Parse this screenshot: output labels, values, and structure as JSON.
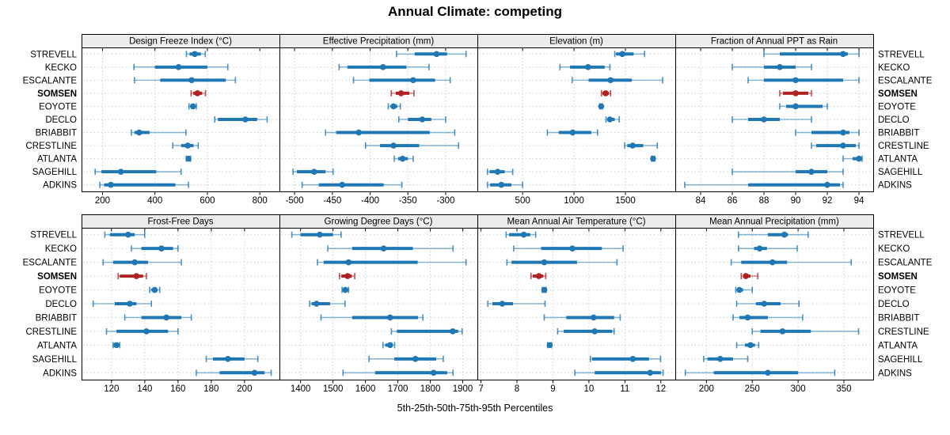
{
  "title": "Annual Climate: competing",
  "caption": "5th-25th-50th-75th-95th Percentiles",
  "sites": [
    "STREVELL",
    "KECKO",
    "ESCALANTE",
    "SOMSEN",
    "EOYOTE",
    "DECLO",
    "BRIABBIT",
    "CRESTLINE",
    "ATLANTA",
    "SAGEHILL",
    "ADKINS"
  ],
  "highlight_site": "SOMSEN",
  "colors": {
    "series": "#1f77b4",
    "highlight": "#b22222",
    "strip_bg": "#ececec",
    "grid": "#d0d0d0",
    "border": "#000000",
    "text": "#000000"
  },
  "chart_data": {
    "type": "dot-percentile-trellis",
    "layout": {
      "rows": 2,
      "cols": 4,
      "grid": "dotted",
      "legend": "none"
    },
    "percentile_labels": [
      "5th",
      "25th",
      "50th",
      "75th",
      "95th"
    ],
    "panels": [
      {
        "title": "Design Freeze Index (°C)",
        "xlim": [
          120,
          875
        ],
        "xticks": [
          200,
          400,
          600,
          800
        ],
        "values": [
          [
            520,
            532,
            552,
            575,
            592
          ],
          [
            320,
            400,
            490,
            600,
            678
          ],
          [
            322,
            420,
            540,
            670,
            707
          ],
          [
            538,
            546,
            562,
            580,
            593
          ],
          [
            530,
            536,
            545,
            551,
            558
          ],
          [
            628,
            640,
            745,
            790,
            828
          ],
          [
            310,
            322,
            340,
            380,
            518
          ],
          [
            468,
            500,
            525,
            547,
            565
          ],
          [
            520,
            524,
            528,
            532,
            536
          ],
          [
            172,
            196,
            270,
            405,
            500
          ],
          [
            190,
            206,
            232,
            478,
            528
          ]
        ]
      },
      {
        "title": "Effective Precipitation (mm)",
        "xlim": [
          -520,
          -258
        ],
        "xticks": [
          -500,
          -450,
          -400,
          -350,
          -300
        ],
        "values": [
          [
            -365,
            -341,
            -312,
            -298,
            -273
          ],
          [
            -441,
            -430,
            -383,
            -352,
            -322
          ],
          [
            -422,
            -401,
            -343,
            -314,
            -294
          ],
          [
            -372,
            -366,
            -359,
            -348,
            -342
          ],
          [
            -376,
            -373,
            -369,
            -364,
            -360
          ],
          [
            -362,
            -350,
            -331,
            -319,
            -300
          ],
          [
            -459,
            -445,
            -415,
            -321,
            -288
          ],
          [
            -406,
            -387,
            -369,
            -335,
            -283
          ],
          [
            -368,
            -363,
            -357,
            -350,
            -343
          ],
          [
            -502,
            -497,
            -474,
            -459,
            -449
          ],
          [
            -490,
            -468,
            -437,
            -382,
            -358
          ]
        ]
      },
      {
        "title": "Elevation (m)",
        "xlim": [
          60,
          1985
        ],
        "xticks": [
          500,
          1000,
          1500
        ],
        "values": [
          [
            1396,
            1408,
            1470,
            1580,
            1686
          ],
          [
            863,
            961,
            1137,
            1298,
            1349
          ],
          [
            982,
            1142,
            1355,
            1562,
            1862
          ],
          [
            1267,
            1277,
            1308,
            1339,
            1355
          ],
          [
            1250,
            1258,
            1264,
            1270,
            1277
          ],
          [
            1311,
            1323,
            1349,
            1396,
            1440
          ],
          [
            741,
            852,
            987,
            1168,
            1228
          ],
          [
            1492,
            1518,
            1570,
            1673,
            1810
          ],
          [
            1755,
            1762,
            1769,
            1776,
            1785
          ],
          [
            158,
            179,
            257,
            326,
            404
          ],
          [
            158,
            184,
            293,
            391,
            500
          ]
        ]
      },
      {
        "title": "Fraction of Annual PPT as Rain",
        "xlim": [
          82.4,
          94.9
        ],
        "xticks": [
          84,
          86,
          88,
          90,
          92,
          94
        ],
        "values": [
          [
            88,
            89,
            93,
            93.3,
            94
          ],
          [
            86,
            88,
            89,
            90,
            91
          ],
          [
            87,
            88,
            90,
            93,
            94
          ],
          [
            89,
            89.2,
            90,
            90.8,
            91
          ],
          [
            89,
            89.4,
            90,
            91.7,
            92
          ],
          [
            86,
            87,
            88,
            89,
            91
          ],
          [
            90,
            91,
            93,
            93.4,
            94
          ],
          [
            91,
            91.3,
            93,
            93.8,
            94
          ],
          [
            93,
            93.6,
            94,
            94.1,
            94.2
          ],
          [
            86,
            90,
            91,
            92,
            93
          ],
          [
            83,
            87,
            92,
            92.8,
            93
          ]
        ]
      },
      {
        "title": "Frost-Free Days",
        "xlim": [
          102,
          221
        ],
        "xticks": [
          120,
          140,
          160,
          180,
          200
        ],
        "values": [
          [
            116,
            119,
            130,
            134,
            140
          ],
          [
            132,
            138,
            150,
            157,
            160
          ],
          [
            115,
            121,
            134,
            142,
            162
          ],
          [
            124,
            125,
            135,
            139,
            141
          ],
          [
            143,
            144,
            146,
            147,
            149
          ],
          [
            109,
            122,
            131,
            135,
            144
          ],
          [
            128,
            138,
            153,
            162,
            168
          ],
          [
            117,
            123,
            141,
            154,
            160
          ],
          [
            121,
            122,
            123,
            124,
            125
          ],
          [
            177,
            181,
            190,
            200,
            208
          ],
          [
            171,
            185,
            206,
            212,
            216
          ]
        ]
      },
      {
        "title": "Growing Degree Days (°C)",
        "xlim": [
          1335,
          1945
        ],
        "xticks": [
          1400,
          1500,
          1600,
          1700,
          1800,
          1900
        ],
        "values": [
          [
            1373,
            1400,
            1459,
            1500,
            1525
          ],
          [
            1484,
            1559,
            1656,
            1746,
            1870
          ],
          [
            1452,
            1471,
            1548,
            1761,
            1910
          ],
          [
            1520,
            1526,
            1545,
            1558,
            1567
          ],
          [
            1528,
            1533,
            1538,
            1543,
            1548
          ],
          [
            1428,
            1434,
            1449,
            1491,
            1537
          ],
          [
            1463,
            1559,
            1676,
            1762,
            1777
          ],
          [
            1680,
            1697,
            1869,
            1886,
            1898
          ],
          [
            1654,
            1661,
            1676,
            1684,
            1690
          ],
          [
            1611,
            1689,
            1754,
            1818,
            1840
          ],
          [
            1531,
            1630,
            1810,
            1852,
            1870
          ]
        ]
      },
      {
        "title": "Mean Annual Air Temperature (°C)",
        "xlim": [
          6.9,
          12.4
        ],
        "xticks": [
          7,
          8,
          9,
          10,
          11,
          12
        ],
        "values": [
          [
            7.7,
            7.78,
            8.19,
            8.37,
            8.52
          ],
          [
            7.91,
            8.67,
            9.54,
            10.36,
            10.95
          ],
          [
            7.72,
            7.85,
            8.76,
            9.67,
            10.78
          ],
          [
            8.39,
            8.44,
            8.61,
            8.73,
            8.8
          ],
          [
            8.7,
            8.73,
            8.76,
            8.78,
            8.81
          ],
          [
            7.19,
            7.32,
            7.59,
            7.89,
            8.78
          ],
          [
            8.76,
            9.37,
            10.13,
            10.7,
            10.87
          ],
          [
            9.13,
            9.3,
            10.16,
            10.65,
            10.7
          ],
          [
            8.85,
            8.88,
            8.91,
            8.94,
            8.96
          ],
          [
            10.04,
            10.09,
            11.22,
            11.67,
            11.99
          ],
          [
            9.61,
            10.16,
            11.7,
            12.0,
            12.06
          ]
        ]
      },
      {
        "title": "Mean Annual Precipitation (mm)",
        "xlim": [
          166,
          382
        ],
        "xticks": [
          200,
          250,
          300,
          350
        ],
        "values": [
          [
            235,
            267,
            285,
            289,
            311
          ],
          [
            235,
            252,
            258,
            266,
            299
          ],
          [
            227,
            238,
            272,
            288,
            358
          ],
          [
            238,
            240,
            243,
            248,
            256
          ],
          [
            232,
            234,
            236,
            240,
            250
          ],
          [
            233,
            254,
            263,
            281,
            301
          ],
          [
            229,
            236,
            245,
            267,
            305
          ],
          [
            250,
            259,
            283,
            314,
            366
          ],
          [
            233,
            242,
            248,
            253,
            257
          ],
          [
            197,
            201,
            215,
            229,
            245
          ],
          [
            177,
            208,
            267,
            300,
            340
          ]
        ]
      }
    ]
  }
}
